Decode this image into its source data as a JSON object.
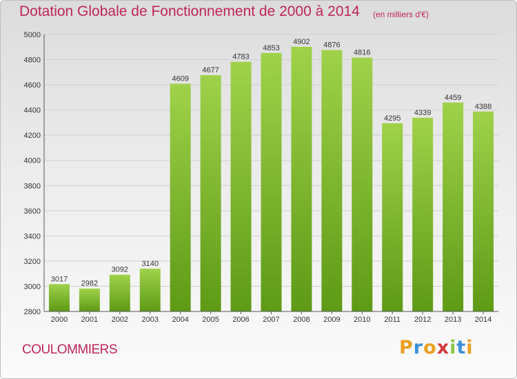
{
  "header": {
    "title": "Dotation Globale de Fonctionnement de 2000 à 2014",
    "unit": "(en milliers d'€)"
  },
  "footer": {
    "commune": "COULOMMIERS",
    "logo": {
      "text": "Proxiti",
      "letter_colors": [
        "#e8a020",
        "#3a8fd8",
        "#e8a020",
        "#d23b3b",
        "#8bc34a",
        "#3a8fd8",
        "#e8a020"
      ]
    }
  },
  "colors": {
    "title": "#c0245c",
    "bar_light": "#9fd24a",
    "bar_dark": "#5e9a16",
    "grid": "#cfcfcf"
  },
  "chart_data": {
    "type": "bar",
    "title": "Dotation Globale de Fonctionnement de 2000 à 2014",
    "subtitle": "(en milliers d'€)",
    "xlabel": "",
    "ylabel": "",
    "categories": [
      "2000",
      "2001",
      "2002",
      "2003",
      "2004",
      "2005",
      "2006",
      "2007",
      "2008",
      "2009",
      "2010",
      "2011",
      "2012",
      "2013",
      "2014"
    ],
    "values": [
      3017,
      2982,
      3092,
      3140,
      4609,
      4677,
      4783,
      4853,
      4902,
      4876,
      4816,
      4295,
      4339,
      4459,
      4388
    ],
    "ylim": [
      2800,
      5000
    ],
    "yticks": [
      2800,
      3000,
      3200,
      3400,
      3600,
      3800,
      4000,
      4200,
      4400,
      4600,
      4800,
      5000
    ],
    "grid": true,
    "legend": "none"
  }
}
